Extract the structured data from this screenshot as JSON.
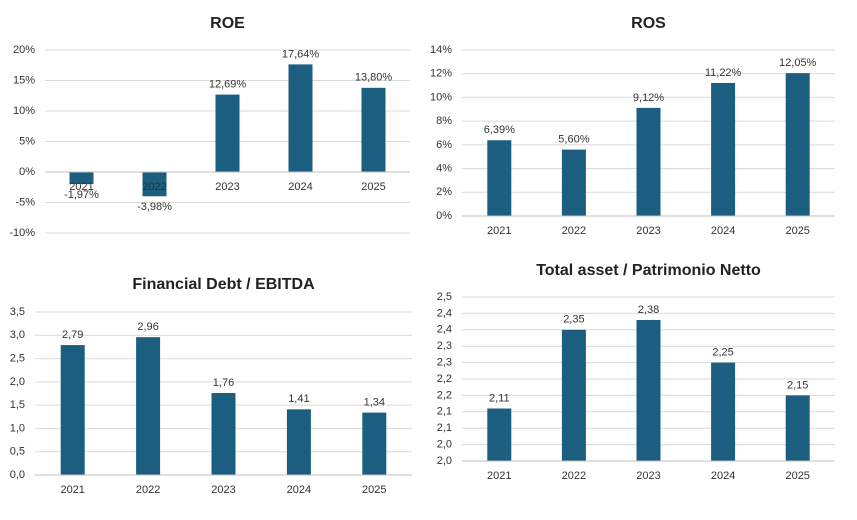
{
  "chart_data": [
    {
      "type": "bar",
      "title": "ROE",
      "categories": [
        "2021",
        "2022",
        "2023",
        "2024",
        "2025"
      ],
      "values": [
        -1.97,
        -3.98,
        12.69,
        17.64,
        13.8
      ],
      "value_labels": [
        "-1,97%",
        "-3,98%",
        "12,69%",
        "17,64%",
        "13,80%"
      ],
      "color": "#1b5e7f",
      "ylim": [
        -10,
        20
      ],
      "yticks": [
        {
          "value": -10,
          "label": "-10%"
        },
        {
          "value": -5,
          "label": "-5%"
        },
        {
          "value": 0,
          "label": "0%"
        },
        {
          "value": 5,
          "label": "5%"
        },
        {
          "value": 10,
          "label": "10%"
        },
        {
          "value": 15,
          "label": "15%"
        },
        {
          "value": 20,
          "label": "20%"
        }
      ],
      "grid": true
    },
    {
      "type": "bar",
      "title": "ROS",
      "categories": [
        "2021",
        "2022",
        "2023",
        "2024",
        "2025"
      ],
      "values": [
        6.39,
        5.6,
        9.12,
        11.22,
        12.05
      ],
      "value_labels": [
        "6,39%",
        "5,60%",
        "9,12%",
        "11,22%",
        "12,05%"
      ],
      "color": "#1b5e7f",
      "ylim": [
        0,
        14
      ],
      "yticks": [
        {
          "value": 0,
          "label": "0%"
        },
        {
          "value": 2,
          "label": "2%"
        },
        {
          "value": 4,
          "label": "4%"
        },
        {
          "value": 6,
          "label": "6%"
        },
        {
          "value": 8,
          "label": "8%"
        },
        {
          "value": 10,
          "label": "10%"
        },
        {
          "value": 12,
          "label": "12%"
        },
        {
          "value": 14,
          "label": "14%"
        }
      ],
      "grid": true
    },
    {
      "type": "bar",
      "title": "Financial Debt / EBITDA",
      "categories": [
        "2021",
        "2022",
        "2023",
        "2024",
        "2025"
      ],
      "values": [
        2.79,
        2.96,
        1.76,
        1.41,
        1.34
      ],
      "value_labels": [
        "2,79",
        "2,96",
        "1,76",
        "1,41",
        "1,34"
      ],
      "color": "#1b5e7f",
      "ylim": [
        0,
        3.5
      ],
      "yticks": [
        {
          "value": 0,
          "label": "0,0"
        },
        {
          "value": 0.5,
          "label": "0,5"
        },
        {
          "value": 1,
          "label": "1,0"
        },
        {
          "value": 1.5,
          "label": "1,5"
        },
        {
          "value": 2,
          "label": "2,0"
        },
        {
          "value": 2.5,
          "label": "2,5"
        },
        {
          "value": 3,
          "label": "3,0"
        },
        {
          "value": 3.5,
          "label": "3,5"
        }
      ],
      "grid": true
    },
    {
      "type": "bar",
      "title": "Total asset /  Patrimonio Netto",
      "categories": [
        "2021",
        "2022",
        "2023",
        "2024",
        "2025"
      ],
      "values": [
        2.11,
        2.35,
        2.38,
        2.25,
        2.15
      ],
      "value_labels": [
        "2,11",
        "2,35",
        "2,38",
        "2,25",
        "2,15"
      ],
      "color": "#1b5e7f",
      "ylim": [
        1.95,
        2.45
      ],
      "yticks": [
        {
          "value": 1.95,
          "label": "2,0"
        },
        {
          "value": 2,
          "label": "2,0"
        },
        {
          "value": 2.05,
          "label": "2,1"
        },
        {
          "value": 2.1,
          "label": "2,1"
        },
        {
          "value": 2.15,
          "label": "2,2"
        },
        {
          "value": 2.2,
          "label": "2,2"
        },
        {
          "value": 2.25,
          "label": "2,3"
        },
        {
          "value": 2.3,
          "label": "2,3"
        },
        {
          "value": 2.35,
          "label": "2,4"
        },
        {
          "value": 2.4,
          "label": "2,4"
        },
        {
          "value": 2.45,
          "label": "2,5"
        }
      ],
      "grid": true
    }
  ]
}
